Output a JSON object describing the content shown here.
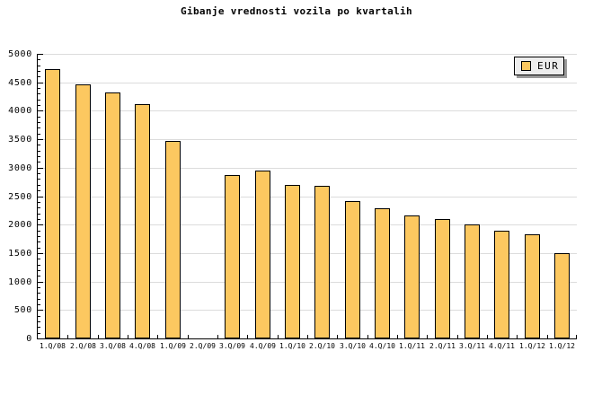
{
  "chart_data": {
    "type": "bar",
    "title": "Gibanje vrednosti vozila po kvartalih",
    "categories": [
      "1.Q/08",
      "2.Q/08",
      "3.Q/08",
      "4.Q/08",
      "1.Q/09",
      "2.Q/09",
      "3.Q/09",
      "4.Q/09",
      "1.Q/10",
      "2.Q/10",
      "3.Q/10",
      "4.Q/10",
      "1.Q/11",
      "2.Q/11",
      "3.Q/11",
      "4.Q/11",
      "1.Q/12",
      "1.Q/12"
    ],
    "series": [
      {
        "name": "EUR",
        "values": [
          4730,
          4460,
          4320,
          4120,
          3470,
          0,
          2870,
          2950,
          2690,
          2680,
          2410,
          2290,
          2160,
          2100,
          2010,
          1890,
          1830,
          1500
        ]
      }
    ],
    "xlabel": "",
    "ylabel": "",
    "ylim": [
      0,
      5000
    ],
    "ytick_step": 500,
    "y_minor_tick_step": 100,
    "ytick_labels": [
      "0",
      "500",
      "1000",
      "1500",
      "2000",
      "2500",
      "3000",
      "3500",
      "4000",
      "4500",
      "5000"
    ],
    "grid": "horizontal-major",
    "legend": {
      "label": "EUR",
      "position": "top-right"
    },
    "colors": {
      "bar_fill": "#FCC860",
      "bar_border": "#000000",
      "grid": "#DCDCDC",
      "axis": "#000000",
      "background": "#FFFFFF",
      "legend_bg": "#EDEDED",
      "legend_shadow": "#999999",
      "text": "#000000"
    }
  }
}
